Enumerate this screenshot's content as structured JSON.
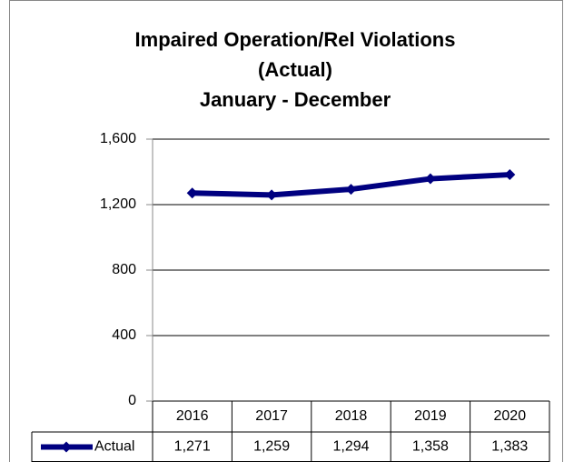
{
  "chart_data": {
    "type": "line",
    "title": [
      "Impaired Operation/Rel Violations",
      "(Actual)",
      "January - December"
    ],
    "categories": [
      "2016",
      "2017",
      "2018",
      "2019",
      "2020"
    ],
    "series": [
      {
        "name": "Actual",
        "color": "#000080",
        "values": [
          1271,
          1259,
          1294,
          1358,
          1383
        ],
        "value_labels": [
          "1,271",
          "1,259",
          "1,294",
          "1,358",
          "1,383"
        ]
      }
    ],
    "ylim": [
      0,
      1600
    ],
    "yticks": [
      0,
      400,
      800,
      {
        "value": 1200,
        "label": "1,200"
      },
      {
        "value": 1600,
        "label": "1,600"
      }
    ],
    "grid": true,
    "data_table": true
  }
}
